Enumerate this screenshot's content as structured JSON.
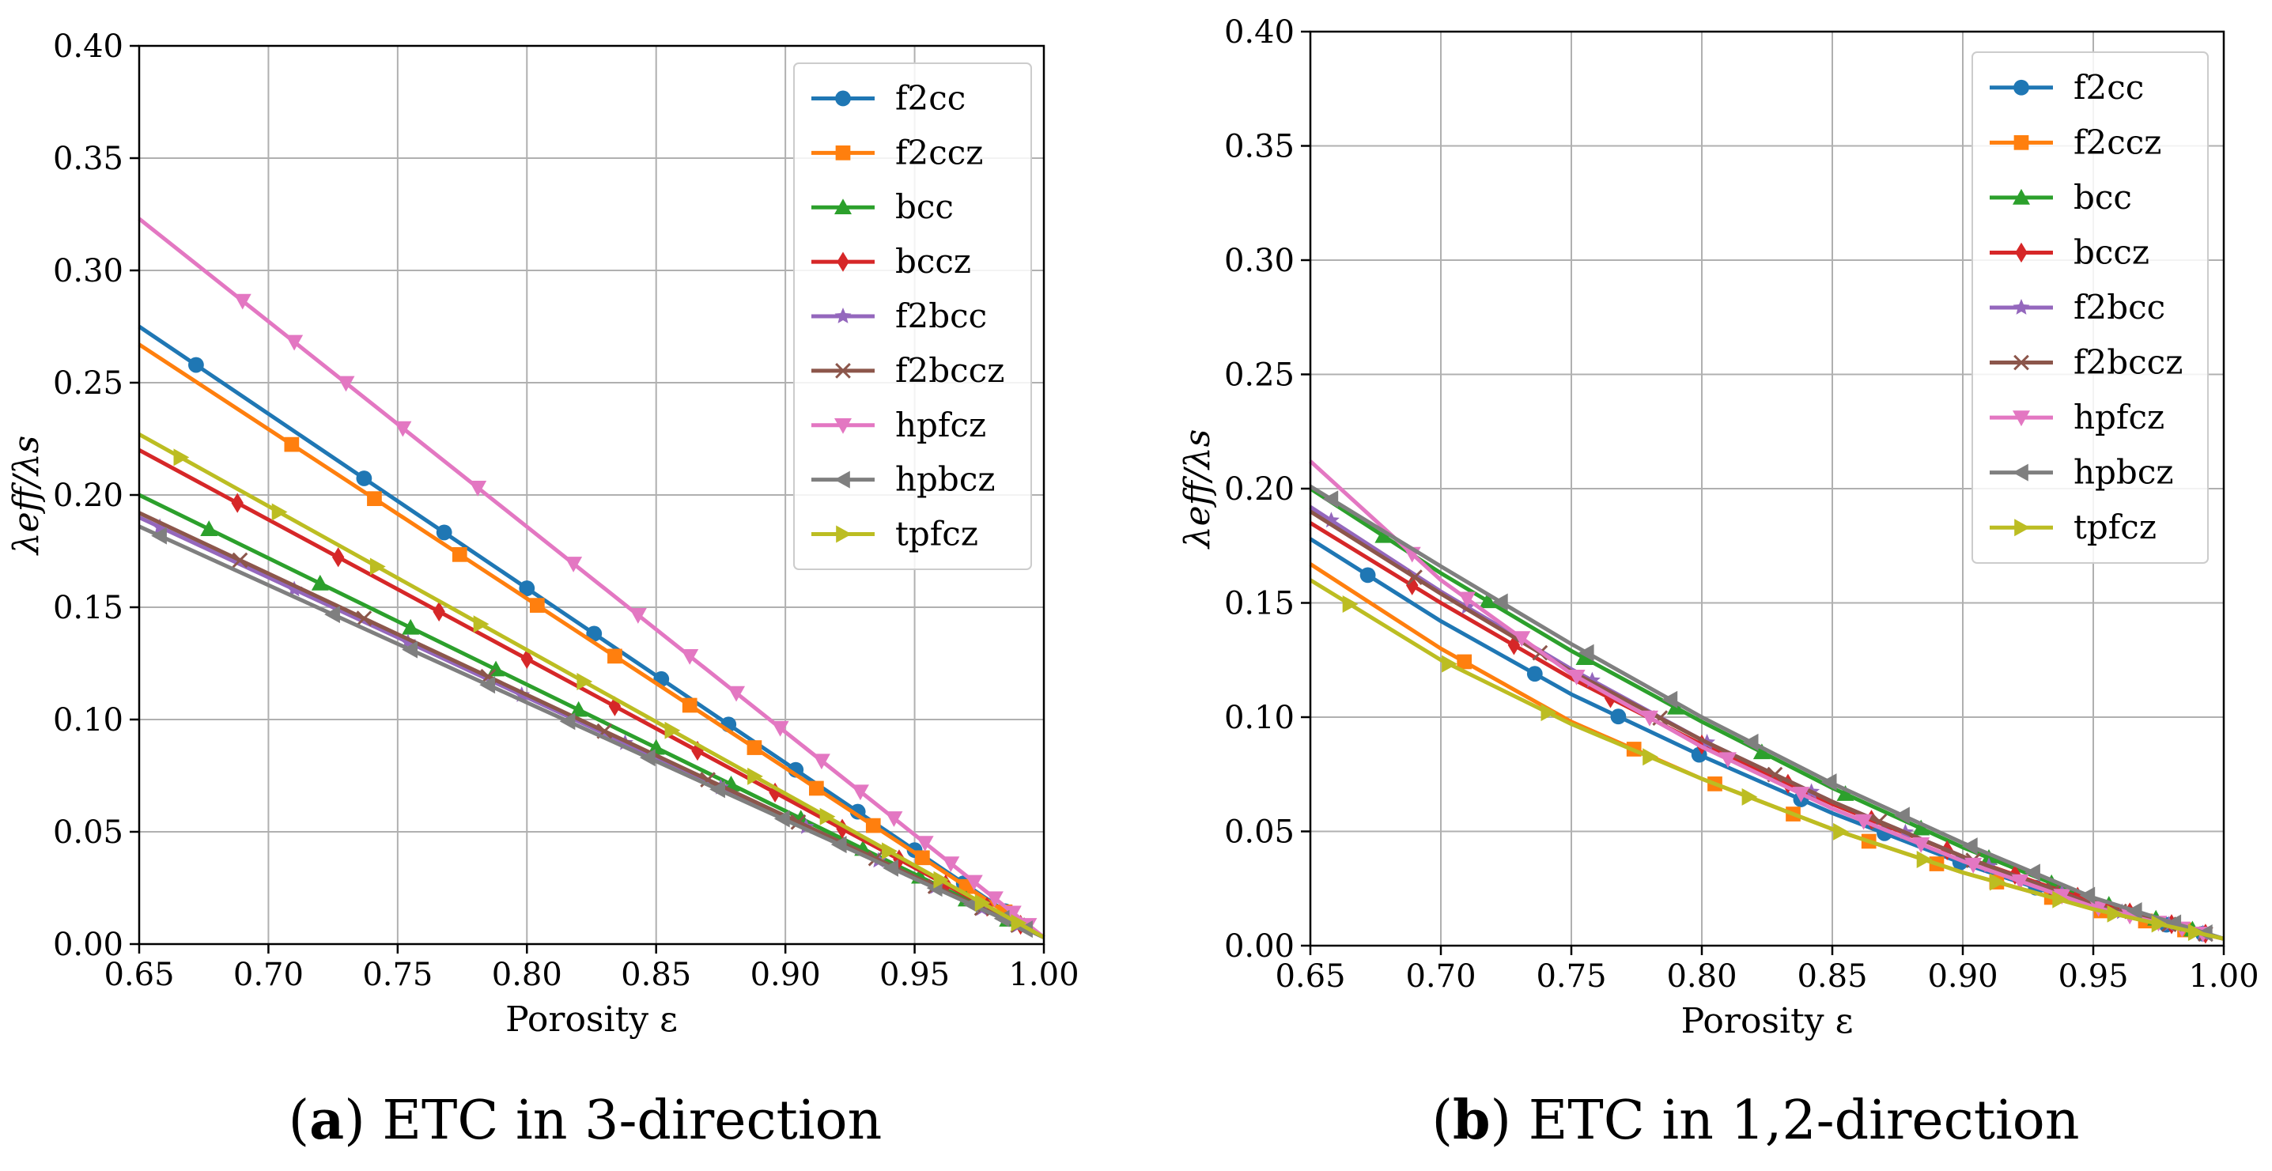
{
  "figure": {
    "panels": [
      {
        "caption_letter": "a",
        "caption_prefix": "(",
        "caption_suffix": ")",
        "caption_text": " ETC in 3-direction"
      },
      {
        "caption_letter": "b",
        "caption_prefix": "(",
        "caption_suffix": ")",
        "caption_text": " ETC in 1,2-direction"
      }
    ]
  },
  "chart_data": [
    {
      "type": "line",
      "title": "",
      "xlabel": "Porosity ε",
      "ylabel": "λeff/λs",
      "xlim": [
        0.65,
        1.0
      ],
      "ylim": [
        0.0,
        0.4
      ],
      "xticks": [
        0.65,
        0.7,
        0.75,
        0.8,
        0.85,
        0.9,
        0.95,
        1.0
      ],
      "xtick_labels": [
        "0.65",
        "0.70",
        "0.75",
        "0.80",
        "0.85",
        "0.90",
        "0.95",
        "1.00"
      ],
      "yticks": [
        0.0,
        0.05,
        0.1,
        0.15,
        0.2,
        0.25,
        0.3,
        0.35,
        0.4
      ],
      "ytick_labels": [
        "0.00",
        "0.05",
        "0.10",
        "0.15",
        "0.20",
        "0.25",
        "0.30",
        "0.35",
        "0.40"
      ],
      "grid": true,
      "legend_position": "top-right",
      "series": [
        {
          "name": "f2cc",
          "color": "#1f77b4",
          "marker": "circle",
          "x": [
            0.65,
            1.0
          ],
          "y": [
            0.275,
            0.003
          ],
          "markers_x": [
            0.672,
            0.737,
            0.768,
            0.8,
            0.826,
            0.852,
            0.878,
            0.904,
            0.928,
            0.95,
            0.969,
            0.985
          ]
        },
        {
          "name": "f2ccz",
          "color": "#ff7f0e",
          "marker": "square",
          "x": [
            0.65,
            1.0
          ],
          "y": [
            0.267,
            0.003
          ],
          "markers_x": [
            0.709,
            0.741,
            0.774,
            0.804,
            0.834,
            0.863,
            0.888,
            0.912,
            0.934,
            0.953,
            0.97,
            0.985
          ]
        },
        {
          "name": "bcc",
          "color": "#2ca02c",
          "marker": "triangle-up",
          "x": [
            0.65,
            1.0
          ],
          "y": [
            0.2,
            0.003
          ],
          "markers_x": [
            0.677,
            0.72,
            0.755,
            0.788,
            0.82,
            0.85,
            0.879,
            0.906,
            0.93,
            0.952,
            0.97,
            0.986
          ]
        },
        {
          "name": "bccz",
          "color": "#d62728",
          "marker": "diamond",
          "x": [
            0.65,
            1.0
          ],
          "y": [
            0.22,
            0.003
          ],
          "markers_x": [
            0.688,
            0.727,
            0.766,
            0.8,
            0.834,
            0.866,
            0.896,
            0.922,
            0.944,
            0.962,
            0.978,
            0.991
          ]
        },
        {
          "name": "f2bcc",
          "color": "#9467bd",
          "marker": "star",
          "x": [
            0.65,
            1.0
          ],
          "y": [
            0.19,
            0.003
          ],
          "markers_x": [
            0.658,
            0.71,
            0.754,
            0.798,
            0.838,
            0.875,
            0.908,
            0.936,
            0.958,
            0.976,
            0.99
          ]
        },
        {
          "name": "f2bccz",
          "color": "#8c564b",
          "marker": "x",
          "x": [
            0.65,
            1.0
          ],
          "y": [
            0.192,
            0.003
          ],
          "markers_x": [
            0.689,
            0.737,
            0.785,
            0.83,
            0.87,
            0.905,
            0.935,
            0.958,
            0.976,
            0.99
          ]
        },
        {
          "name": "hpfcz",
          "color": "#e377c2",
          "marker": "triangle-down",
          "x": [
            0.65,
            1.0
          ],
          "y": [
            0.323,
            0.003
          ],
          "markers_x": [
            0.69,
            0.71,
            0.73,
            0.752,
            0.781,
            0.818,
            0.843,
            0.863,
            0.881,
            0.898,
            0.914,
            0.929,
            0.942,
            0.954,
            0.964,
            0.973,
            0.981,
            0.988,
            0.994
          ]
        },
        {
          "name": "hpbcz",
          "color": "#7f7f7f",
          "marker": "triangle-left",
          "x": [
            0.65,
            1.0
          ],
          "y": [
            0.186,
            0.003
          ],
          "markers_x": [
            0.658,
            0.725,
            0.755,
            0.785,
            0.816,
            0.847,
            0.874,
            0.899,
            0.921,
            0.941,
            0.958,
            0.972,
            0.984,
            0.993
          ]
        },
        {
          "name": "tpfcz",
          "color": "#bcbd22",
          "marker": "triangle-right",
          "x": [
            0.65,
            1.0
          ],
          "y": [
            0.227,
            0.003
          ],
          "markers_x": [
            0.666,
            0.704,
            0.742,
            0.782,
            0.822,
            0.856,
            0.888,
            0.916,
            0.94,
            0.96,
            0.976,
            0.99
          ]
        }
      ]
    },
    {
      "type": "line",
      "title": "",
      "xlabel": "Porosity ε",
      "ylabel": "λeff/λs",
      "xlim": [
        0.65,
        1.0
      ],
      "ylim": [
        0.0,
        0.4
      ],
      "xticks": [
        0.65,
        0.7,
        0.75,
        0.8,
        0.85,
        0.9,
        0.95,
        1.0
      ],
      "xtick_labels": [
        "0.65",
        "0.70",
        "0.75",
        "0.80",
        "0.85",
        "0.90",
        "0.95",
        "1.00"
      ],
      "yticks": [
        0.0,
        0.05,
        0.1,
        0.15,
        0.2,
        0.25,
        0.3,
        0.35,
        0.4
      ],
      "ytick_labels": [
        "0.00",
        "0.05",
        "0.10",
        "0.15",
        "0.20",
        "0.25",
        "0.30",
        "0.35",
        "0.40"
      ],
      "grid": true,
      "legend_position": "top-right",
      "series": [
        {
          "name": "f2cc",
          "color": "#1f77b4",
          "marker": "circle",
          "x": [
            0.65,
            0.7,
            0.75,
            0.8,
            0.85,
            0.9,
            0.95,
            1.0
          ],
          "y": [
            0.178,
            0.142,
            0.11,
            0.083,
            0.058,
            0.036,
            0.017,
            0.003
          ],
          "markers_x": [
            0.672,
            0.736,
            0.768,
            0.799,
            0.838,
            0.87,
            0.899,
            0.928,
            0.955,
            0.978,
            0.992
          ]
        },
        {
          "name": "f2ccz",
          "color": "#ff7f0e",
          "marker": "square",
          "x": [
            0.65,
            0.7,
            0.75,
            0.8,
            0.85,
            0.9,
            0.95,
            1.0
          ],
          "y": [
            0.167,
            0.13,
            0.098,
            0.073,
            0.051,
            0.032,
            0.016,
            0.003
          ],
          "markers_x": [
            0.709,
            0.774,
            0.805,
            0.835,
            0.864,
            0.89,
            0.913,
            0.934,
            0.953,
            0.97,
            0.985
          ]
        },
        {
          "name": "bcc",
          "color": "#2ca02c",
          "marker": "triangle-up",
          "x": [
            0.65,
            0.7,
            0.75,
            0.8,
            0.85,
            0.9,
            0.95,
            1.0
          ],
          "y": [
            0.2,
            0.163,
            0.129,
            0.098,
            0.069,
            0.043,
            0.02,
            0.003
          ],
          "markers_x": [
            0.678,
            0.718,
            0.755,
            0.79,
            0.823,
            0.855,
            0.884,
            0.91,
            0.934,
            0.956,
            0.974,
            0.988
          ]
        },
        {
          "name": "bccz",
          "color": "#d62728",
          "marker": "diamond",
          "x": [
            0.65,
            0.7,
            0.75,
            0.8,
            0.85,
            0.9,
            0.95,
            1.0
          ],
          "y": [
            0.185,
            0.15,
            0.117,
            0.088,
            0.062,
            0.039,
            0.019,
            0.003
          ],
          "markers_x": [
            0.689,
            0.728,
            0.765,
            0.8,
            0.833,
            0.865,
            0.894,
            0.92,
            0.944,
            0.964,
            0.98,
            0.993
          ]
        },
        {
          "name": "f2bcc",
          "color": "#9467bd",
          "marker": "star",
          "x": [
            0.65,
            0.7,
            0.75,
            0.8,
            0.85,
            0.9,
            0.95,
            1.0
          ],
          "y": [
            0.192,
            0.155,
            0.121,
            0.09,
            0.063,
            0.039,
            0.018,
            0.003
          ],
          "markers_x": [
            0.658,
            0.71,
            0.758,
            0.802,
            0.842,
            0.878,
            0.91,
            0.938,
            0.961,
            0.979,
            0.992
          ]
        },
        {
          "name": "f2bccz",
          "color": "#8c564b",
          "marker": "x",
          "x": [
            0.65,
            0.7,
            0.75,
            0.8,
            0.85,
            0.9,
            0.95,
            1.0
          ],
          "y": [
            0.19,
            0.154,
            0.12,
            0.09,
            0.063,
            0.039,
            0.018,
            0.003
          ],
          "markers_x": [
            0.69,
            0.738,
            0.784,
            0.828,
            0.868,
            0.904,
            0.935,
            0.96,
            0.979,
            0.993
          ]
        },
        {
          "name": "hpfcz",
          "color": "#e377c2",
          "marker": "triangle-down",
          "x": [
            0.65,
            0.7,
            0.75,
            0.8,
            0.85,
            0.9,
            0.95,
            1.0
          ],
          "y": [
            0.212,
            0.16,
            0.119,
            0.087,
            0.06,
            0.037,
            0.017,
            0.003
          ],
          "markers_x": [
            0.689,
            0.71,
            0.731,
            0.752,
            0.78,
            0.81,
            0.838,
            0.862,
            0.884,
            0.904,
            0.922,
            0.938,
            0.952,
            0.964,
            0.975,
            0.984,
            0.992
          ]
        },
        {
          "name": "hpbcz",
          "color": "#7f7f7f",
          "marker": "triangle-left",
          "x": [
            0.65,
            0.7,
            0.75,
            0.8,
            0.85,
            0.9,
            0.95,
            1.0
          ],
          "y": [
            0.201,
            0.166,
            0.132,
            0.1,
            0.071,
            0.045,
            0.021,
            0.003
          ],
          "markers_x": [
            0.658,
            0.723,
            0.756,
            0.788,
            0.819,
            0.849,
            0.877,
            0.903,
            0.927,
            0.948,
            0.966,
            0.981,
            0.993
          ]
        },
        {
          "name": "tpfcz",
          "color": "#bcbd22",
          "marker": "triangle-right",
          "x": [
            0.65,
            0.7,
            0.75,
            0.8,
            0.85,
            0.9,
            0.95,
            1.0
          ],
          "y": [
            0.16,
            0.125,
            0.097,
            0.073,
            0.051,
            0.032,
            0.016,
            0.003
          ],
          "markers_x": [
            0.665,
            0.703,
            0.741,
            0.78,
            0.818,
            0.853,
            0.885,
            0.913,
            0.937,
            0.958,
            0.975,
            0.989
          ]
        }
      ]
    }
  ]
}
